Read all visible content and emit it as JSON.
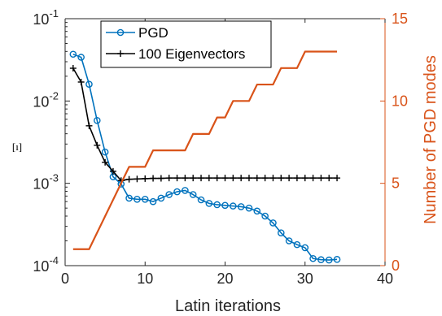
{
  "chart_data": {
    "type": "line",
    "xlabel": "Latin iterations",
    "ylabel_left": "[ı]",
    "ylabel_right": "Number of PGD modes",
    "xlim": [
      0,
      40
    ],
    "x_ticks": [
      "0",
      "10",
      "20",
      "30",
      "40"
    ],
    "ylim_left": [
      0.0001,
      0.1
    ],
    "yscale_left": "log",
    "y_ticks_left": [
      {
        "base": "10",
        "exp": "-1",
        "value": 0.1
      },
      {
        "base": "10",
        "exp": "-2",
        "value": 0.01
      },
      {
        "base": "10",
        "exp": "-3",
        "value": 0.001
      },
      {
        "base": "10",
        "exp": "-4",
        "value": 0.0001
      }
    ],
    "ylim_right": [
      0,
      15
    ],
    "y_ticks_right": [
      "0",
      "5",
      "10",
      "15"
    ],
    "legend_position": "top-left",
    "series": [
      {
        "name": "PGD",
        "axis": "left",
        "color": "#0072BD",
        "marker": "circle",
        "x": [
          1,
          2,
          3,
          4,
          5,
          6,
          7,
          8,
          9,
          10,
          11,
          12,
          13,
          14,
          15,
          16,
          17,
          18,
          19,
          20,
          21,
          22,
          23,
          24,
          25,
          26,
          27,
          28,
          29,
          30,
          31,
          32,
          33,
          34
        ],
        "y": [
          0.037,
          0.034,
          0.016,
          0.0058,
          0.0024,
          0.0012,
          0.00098,
          0.00066,
          0.00064,
          0.00064,
          0.0006,
          0.00066,
          0.00073,
          0.00079,
          0.00082,
          0.00073,
          0.00063,
          0.00057,
          0.00055,
          0.00054,
          0.00053,
          0.00052,
          0.0005,
          0.00046,
          0.0004,
          0.00033,
          0.00025,
          0.0002,
          0.00018,
          0.000165,
          0.000122,
          0.000118,
          0.000117,
          0.000119
        ]
      },
      {
        "name": "100 Eigenvectors",
        "axis": "left",
        "color": "#000000",
        "marker": "plus",
        "x": [
          1,
          2,
          3,
          4,
          5,
          6,
          7,
          8,
          9,
          10,
          11,
          12,
          13,
          14,
          15,
          16,
          17,
          18,
          19,
          20,
          21,
          22,
          23,
          24,
          25,
          26,
          27,
          28,
          29,
          30,
          31,
          32,
          33,
          34
        ],
        "y": [
          0.025,
          0.017,
          0.005,
          0.0029,
          0.0018,
          0.0014,
          0.00108,
          0.00112,
          0.00113,
          0.00114,
          0.00115,
          0.00115,
          0.00116,
          0.00116,
          0.00116,
          0.00116,
          0.00116,
          0.00116,
          0.00116,
          0.00116,
          0.00116,
          0.00116,
          0.00116,
          0.00116,
          0.00116,
          0.00116,
          0.00116,
          0.00116,
          0.00116,
          0.00116,
          0.00116,
          0.00116,
          0.00116,
          0.00116
        ]
      },
      {
        "name": "Number of PGD modes",
        "axis": "right",
        "color": "#D95319",
        "marker": "none",
        "x": [
          1,
          2,
          3,
          8,
          9,
          10,
          11,
          12,
          13,
          14,
          15,
          16,
          17,
          18,
          19,
          20,
          21,
          22,
          23,
          24,
          25,
          26,
          27,
          28,
          29,
          30,
          31,
          32,
          33,
          34
        ],
        "y": [
          1,
          1,
          1,
          6,
          6,
          6,
          7,
          7,
          7,
          7,
          7,
          8,
          8,
          8,
          9,
          9,
          10,
          10,
          10,
          11,
          11,
          11,
          12,
          12,
          12,
          13,
          13,
          13,
          13,
          13
        ]
      }
    ]
  }
}
